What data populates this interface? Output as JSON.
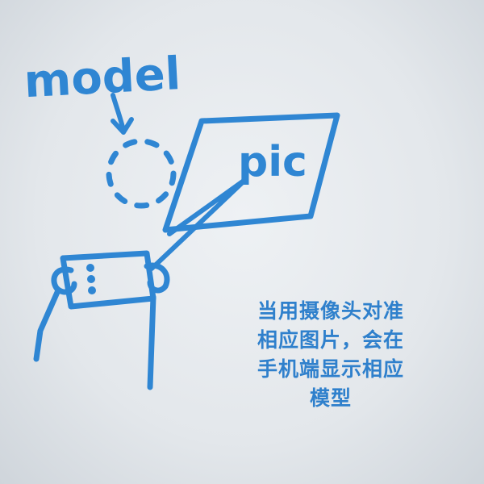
{
  "colors": {
    "ink": "#2f86d3",
    "caption": "#2f80cc"
  },
  "sketch": {
    "model_label": "model",
    "pic_label": "pic"
  },
  "caption": {
    "lines": [
      "当用摄像头对准",
      "相应图片，会在",
      "手机端显示相应",
      "模型"
    ]
  }
}
